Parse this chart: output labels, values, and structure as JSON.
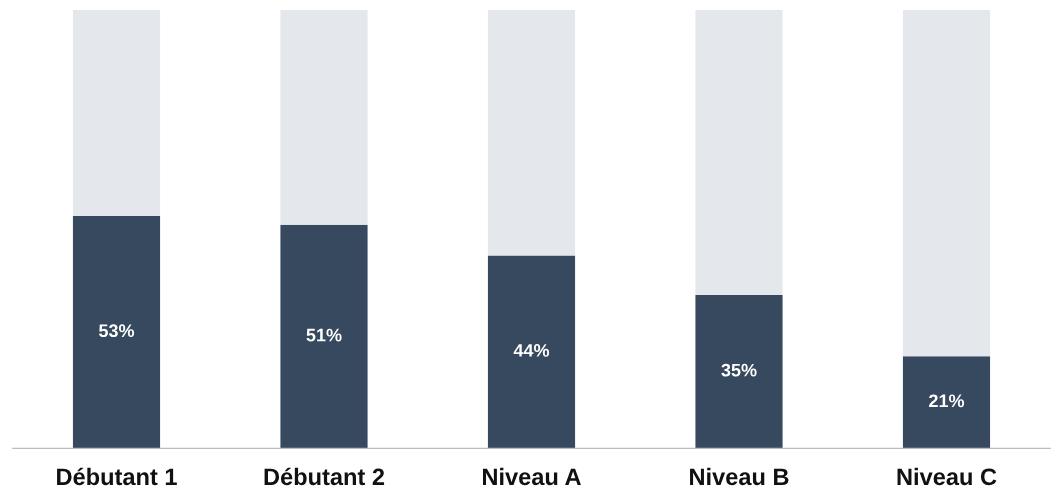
{
  "chart_data": {
    "type": "bar",
    "stacked": true,
    "categories": [
      "Débutant 1",
      "Débutant 2",
      "Niveau A",
      "Niveau B",
      "Niveau C"
    ],
    "ylim": [
      0,
      100
    ],
    "tick_labels": "x",
    "grid": false,
    "series": [
      {
        "color": "#37495e",
        "values": [
          53,
          51,
          44,
          35,
          21
        ],
        "value_labels": [
          "53%",
          "51%",
          "44%",
          "35%",
          "21%"
        ]
      },
      {
        "color": "#e4e7ec",
        "values": [
          47,
          49,
          56,
          65,
          79
        ]
      }
    ]
  }
}
